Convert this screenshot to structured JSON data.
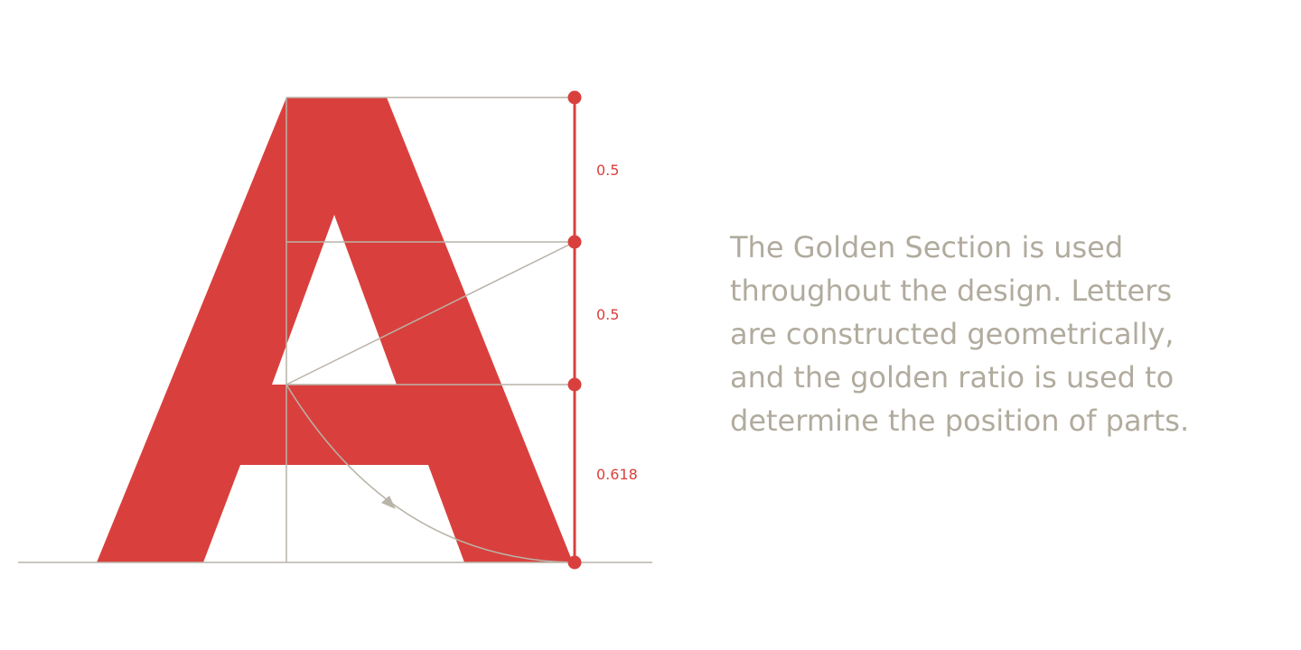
{
  "figure": {
    "letter_fill": "#d9403d",
    "guide_color": "#b9b4a8",
    "accent_color": "#d9403d",
    "text_color": "#b1ab9e"
  },
  "ratios": {
    "top": "0.5",
    "middle": "0.5",
    "bottom": "0.618"
  },
  "description": {
    "lines": [
      "The Golden Section is used",
      "throughout the design. Letters",
      "are constructed geometrically,",
      "and the golden ratio is used to",
      "determine the position of parts."
    ]
  }
}
